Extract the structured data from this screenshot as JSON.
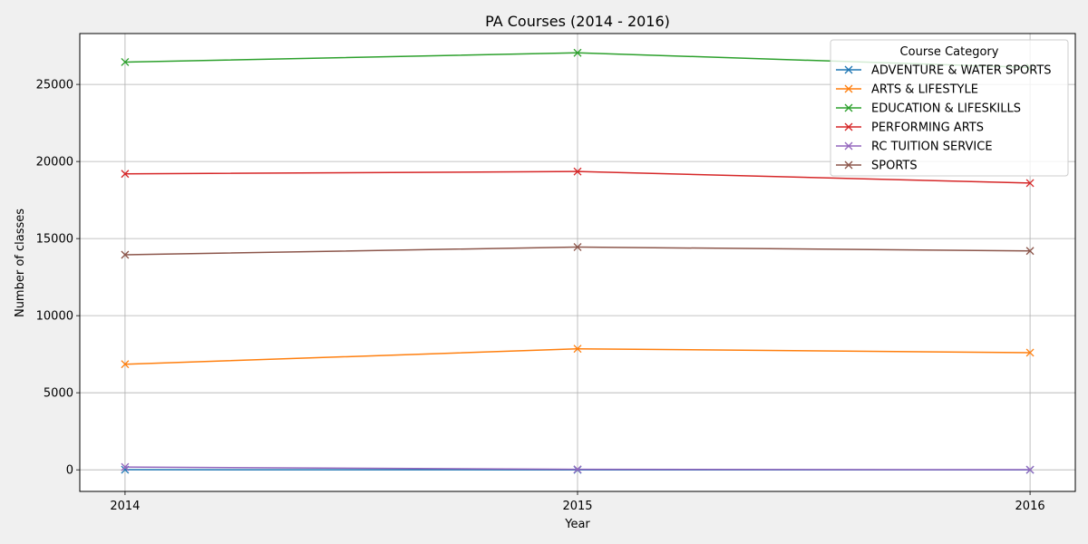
{
  "chart_data": {
    "type": "line",
    "title": "PA Courses (2014 - 2016)",
    "xlabel": "Year",
    "ylabel": "Number of classes",
    "x": [
      2014,
      2015,
      2016
    ],
    "xlim": [
      2013.9,
      2016.1
    ],
    "ylim": [
      -1400,
      28300
    ],
    "yticks": [
      0,
      5000,
      10000,
      15000,
      20000,
      25000
    ],
    "grid": true,
    "marker": "x",
    "legend": {
      "title": "Course Category",
      "placement": "top-right"
    },
    "series": [
      {
        "name": "ADVENTURE & WATER SPORTS",
        "color": "#1f77b4",
        "values": [
          10,
          0,
          0
        ]
      },
      {
        "name": "ARTS & LIFESTYLE",
        "color": "#ff7f0e",
        "values": [
          6850,
          7850,
          7600
        ]
      },
      {
        "name": "EDUCATION & LIFESKILLS",
        "color": "#2ca02c",
        "values": [
          26450,
          27050,
          26100
        ]
      },
      {
        "name": "PERFORMING ARTS",
        "color": "#d62728",
        "values": [
          19200,
          19350,
          18600
        ]
      },
      {
        "name": "RC TUITION SERVICE",
        "color": "#9467bd",
        "values": [
          180,
          30,
          10
        ]
      },
      {
        "name": "SPORTS",
        "color": "#8c564b",
        "values": [
          13950,
          14450,
          14200
        ]
      }
    ]
  }
}
